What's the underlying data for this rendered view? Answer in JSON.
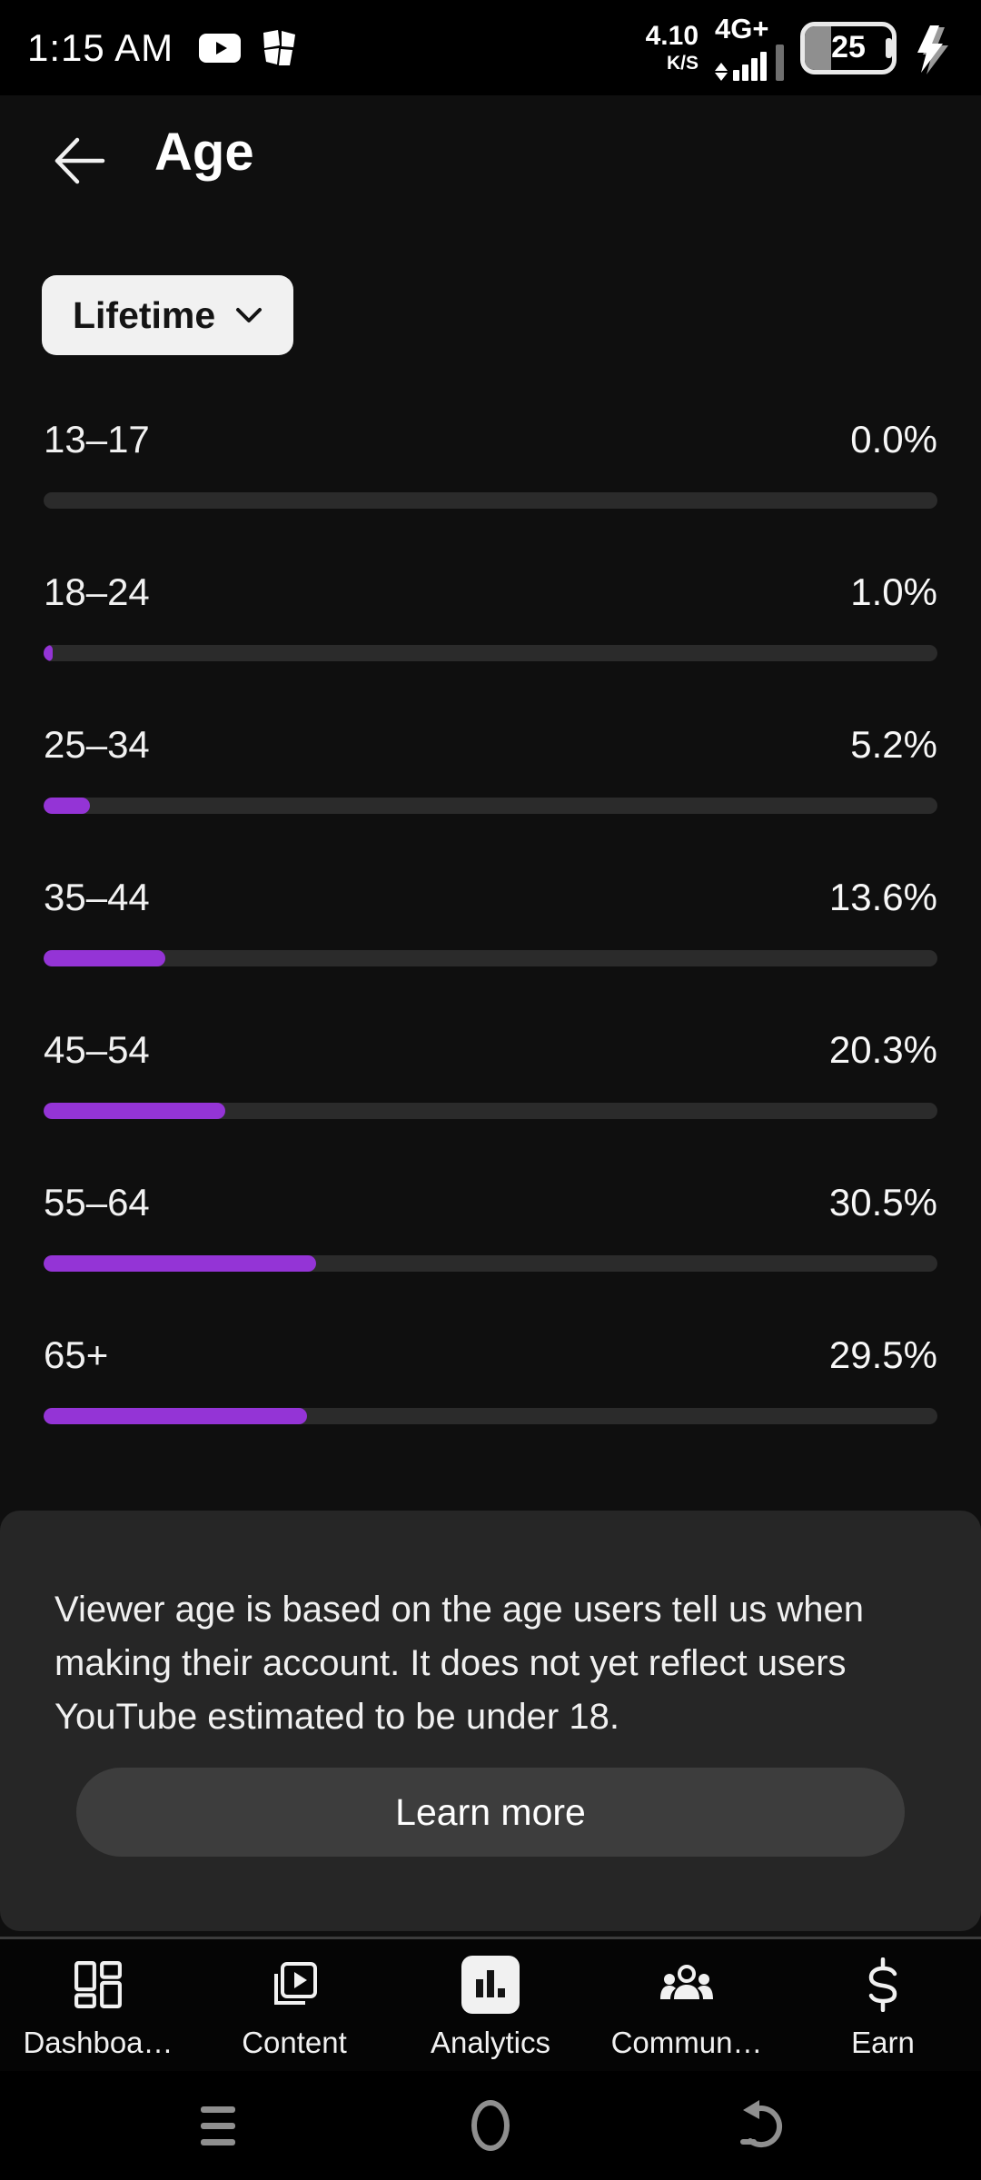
{
  "status_bar": {
    "time": "1:15 AM",
    "network_speed": "4.10",
    "network_speed_unit": "K/S",
    "network_type": "4G+",
    "battery_percent": "25"
  },
  "header": {
    "title": "Age"
  },
  "filter_chip": {
    "label": "Lifetime"
  },
  "chart_data": {
    "type": "bar",
    "orientation": "horizontal",
    "title": "Age",
    "subtitle": "Lifetime",
    "categories": [
      "13–17",
      "18–24",
      "25–34",
      "35–44",
      "45–54",
      "55–64",
      "65+"
    ],
    "values": [
      0.0,
      1.0,
      5.2,
      13.6,
      20.3,
      30.5,
      29.5
    ],
    "value_labels": [
      "0.0%",
      "1.0%",
      "5.2%",
      "13.6%",
      "20.3%",
      "30.5%",
      "29.5%"
    ],
    "xlim": [
      0,
      100
    ],
    "bar_color": "#9434d6",
    "track_color": "#2b2b2b"
  },
  "info_panel": {
    "text": "Viewer age is based on the age users tell us when making their account. It does not yet reflect users YouTube estimated to be under 18.",
    "button_label": "Learn more"
  },
  "bottom_nav": {
    "items": [
      {
        "label": "Dashboa…",
        "icon": "dashboard-icon",
        "active": false
      },
      {
        "label": "Content",
        "icon": "content-icon",
        "active": false
      },
      {
        "label": "Analytics",
        "icon": "analytics-icon",
        "active": true
      },
      {
        "label": "Commun…",
        "icon": "community-icon",
        "active": false
      },
      {
        "label": "Earn",
        "icon": "earn-icon",
        "active": false
      }
    ]
  },
  "android_nav": {
    "buttons": [
      "menu",
      "home",
      "back"
    ]
  },
  "colors": {
    "page_bg": "#0f0f0f",
    "accent_purple": "#9434d6",
    "chip_bg": "#f1f1f1",
    "panel_bg": "#262626",
    "button_bg": "#3d3d3d"
  }
}
